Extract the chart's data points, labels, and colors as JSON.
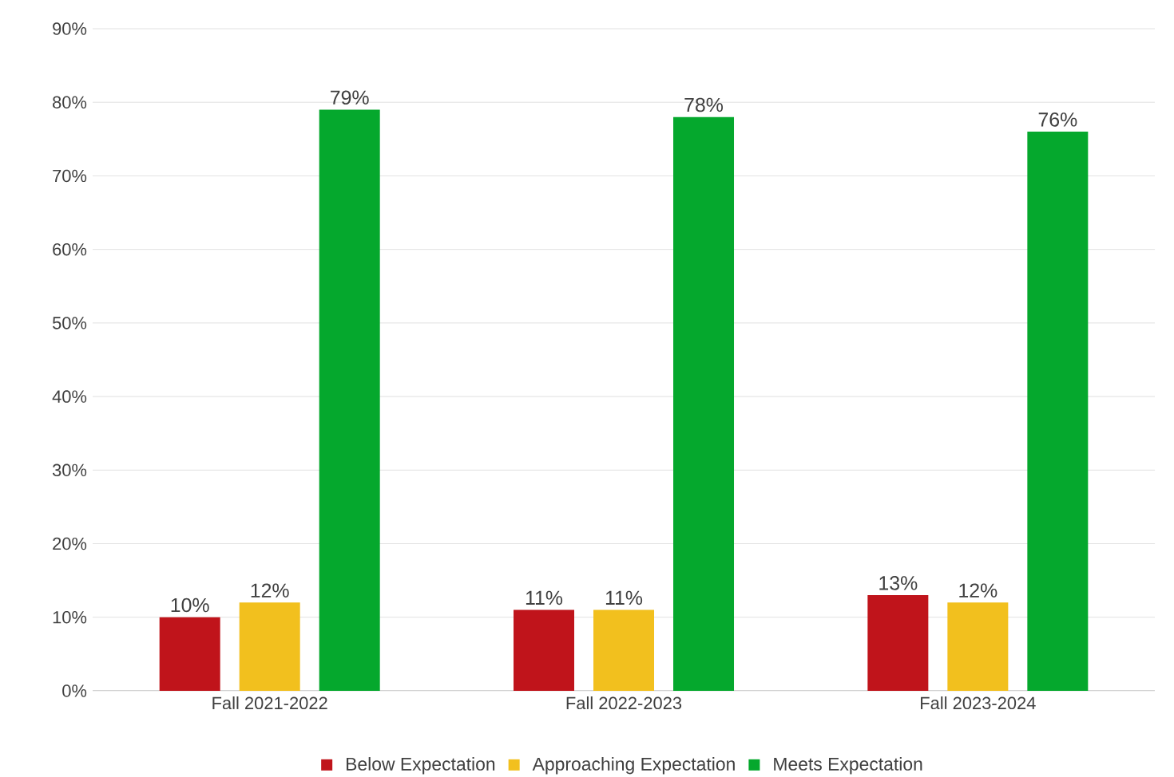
{
  "chart_data": {
    "type": "bar",
    "categories": [
      "Fall 2021-2022",
      "Fall 2022-2023",
      "Fall 2023-2024"
    ],
    "series": [
      {
        "name": "Below Expectation",
        "color": "#c0141b",
        "values": [
          10,
          11,
          13
        ],
        "value_labels": [
          "10%",
          "11%",
          "13%"
        ]
      },
      {
        "name": "Approaching Expectation",
        "color": "#f2c01e",
        "values": [
          12,
          11,
          12
        ],
        "value_labels": [
          "12%",
          "11%",
          "12%"
        ]
      },
      {
        "name": "Meets Expectation",
        "color": "#05a82d",
        "values": [
          79,
          78,
          76
        ],
        "value_labels": [
          "79%",
          "78%",
          "76%"
        ]
      }
    ],
    "ylim": [
      0,
      90
    ],
    "yticks": [
      {
        "value": 0,
        "label": "0%"
      },
      {
        "value": 10,
        "label": "10%"
      },
      {
        "value": 20,
        "label": "20%"
      },
      {
        "value": 30,
        "label": "30%"
      },
      {
        "value": 40,
        "label": "40%"
      },
      {
        "value": 50,
        "label": "50%"
      },
      {
        "value": 60,
        "label": "60%"
      },
      {
        "value": 70,
        "label": "70%"
      },
      {
        "value": 80,
        "label": "80%"
      },
      {
        "value": 90,
        "label": "90%"
      }
    ],
    "grid": "y",
    "legend": "bottom"
  }
}
